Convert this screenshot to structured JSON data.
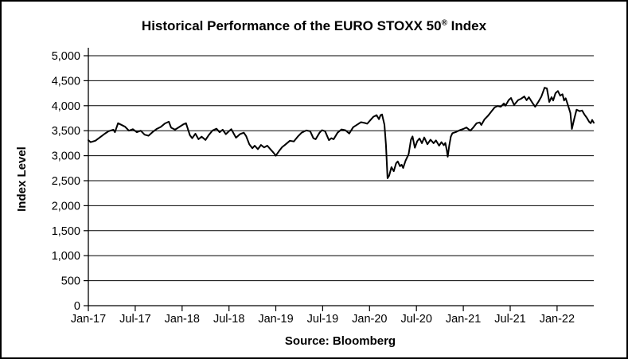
{
  "page": {
    "title_prefix": "Historical Performance of the EURO STOXX 50",
    "title_reg": "®",
    "title_suffix": " Index"
  },
  "chart_data": {
    "type": "line",
    "title": "Historical Performance of the EURO STOXX 50® Index",
    "ylabel": "Index Level",
    "xlabel": "",
    "source_label": "Source: Bloomberg",
    "legend": "none",
    "grid": "horizontal",
    "line_color": "#000000",
    "ylim": [
      0,
      5000
    ],
    "y_ticks": [
      {
        "value": 0,
        "label": "0"
      },
      {
        "value": 500,
        "label": "500"
      },
      {
        "value": 1000,
        "label": "1,000"
      },
      {
        "value": 1500,
        "label": "1,500"
      },
      {
        "value": 2000,
        "label": "2,000"
      },
      {
        "value": 2500,
        "label": "2,500"
      },
      {
        "value": 3000,
        "label": "3,000"
      },
      {
        "value": 3500,
        "label": "3,500"
      },
      {
        "value": 4000,
        "label": "4,000"
      },
      {
        "value": 4500,
        "label": "4,500"
      },
      {
        "value": 5000,
        "label": "5,000"
      }
    ],
    "x_ticks": [
      {
        "m": 0,
        "label": "Jan-17"
      },
      {
        "m": 6,
        "label": "Jul-17"
      },
      {
        "m": 12,
        "label": "Jan-18"
      },
      {
        "m": 18,
        "label": "Jul-18"
      },
      {
        "m": 24,
        "label": "Jan-19"
      },
      {
        "m": 30,
        "label": "Jul-19"
      },
      {
        "m": 36,
        "label": "Jan-20"
      },
      {
        "m": 42,
        "label": "Jul-20"
      },
      {
        "m": 48,
        "label": "Jan-21"
      },
      {
        "m": 54,
        "label": "Jul-21"
      },
      {
        "m": 60,
        "label": "Jan-22"
      }
    ],
    "x_domain_months": [
      0,
      64.7
    ],
    "x_unit": "months since Jan-2017",
    "series": [
      {
        "name": "EURO STOXX 50 Index level",
        "points": [
          [
            0,
            3310
          ],
          [
            0.3,
            3270
          ],
          [
            0.9,
            3300
          ],
          [
            1.6,
            3380
          ],
          [
            2.1,
            3440
          ],
          [
            2.6,
            3490
          ],
          [
            3.2,
            3520
          ],
          [
            3.4,
            3470
          ],
          [
            3.8,
            3650
          ],
          [
            4.2,
            3620
          ],
          [
            4.7,
            3580
          ],
          [
            5.2,
            3500
          ],
          [
            5.7,
            3530
          ],
          [
            6.2,
            3470
          ],
          [
            6.7,
            3500
          ],
          [
            7.2,
            3420
          ],
          [
            7.7,
            3400
          ],
          [
            8.2,
            3470
          ],
          [
            8.7,
            3530
          ],
          [
            9.3,
            3580
          ],
          [
            9.8,
            3645
          ],
          [
            10.3,
            3680
          ],
          [
            10.6,
            3560
          ],
          [
            11.1,
            3520
          ],
          [
            11.5,
            3560
          ],
          [
            11.9,
            3600
          ],
          [
            12.2,
            3630
          ],
          [
            12.5,
            3650
          ],
          [
            13.0,
            3410
          ],
          [
            13.3,
            3350
          ],
          [
            13.7,
            3440
          ],
          [
            14.1,
            3330
          ],
          [
            14.5,
            3380
          ],
          [
            15.0,
            3315
          ],
          [
            15.4,
            3410
          ],
          [
            15.9,
            3505
          ],
          [
            16.4,
            3540
          ],
          [
            16.8,
            3470
          ],
          [
            17.2,
            3520
          ],
          [
            17.6,
            3430
          ],
          [
            18.0,
            3490
          ],
          [
            18.3,
            3530
          ],
          [
            18.9,
            3360
          ],
          [
            19.4,
            3430
          ],
          [
            19.9,
            3460
          ],
          [
            20.2,
            3390
          ],
          [
            20.6,
            3230
          ],
          [
            21.0,
            3150
          ],
          [
            21.3,
            3200
          ],
          [
            21.7,
            3130
          ],
          [
            22.1,
            3215
          ],
          [
            22.5,
            3165
          ],
          [
            22.9,
            3200
          ],
          [
            23.3,
            3130
          ],
          [
            23.7,
            3060
          ],
          [
            24.0,
            3000
          ],
          [
            24.4,
            3090
          ],
          [
            24.8,
            3170
          ],
          [
            25.2,
            3220
          ],
          [
            25.8,
            3300
          ],
          [
            26.3,
            3285
          ],
          [
            26.8,
            3380
          ],
          [
            27.3,
            3460
          ],
          [
            27.9,
            3505
          ],
          [
            28.4,
            3490
          ],
          [
            28.8,
            3350
          ],
          [
            29.1,
            3330
          ],
          [
            29.6,
            3460
          ],
          [
            29.9,
            3510
          ],
          [
            30.3,
            3490
          ],
          [
            30.8,
            3310
          ],
          [
            31.1,
            3350
          ],
          [
            31.4,
            3330
          ],
          [
            31.9,
            3460
          ],
          [
            32.4,
            3525
          ],
          [
            32.9,
            3510
          ],
          [
            33.4,
            3445
          ],
          [
            33.9,
            3570
          ],
          [
            34.4,
            3620
          ],
          [
            34.9,
            3670
          ],
          [
            35.4,
            3655
          ],
          [
            35.7,
            3640
          ],
          [
            36.2,
            3730
          ],
          [
            36.5,
            3780
          ],
          [
            36.9,
            3810
          ],
          [
            37.2,
            3730
          ],
          [
            37.4,
            3810
          ],
          [
            37.6,
            3825
          ],
          [
            37.9,
            3620
          ],
          [
            38.1,
            3220
          ],
          [
            38.3,
            2550
          ],
          [
            38.5,
            2600
          ],
          [
            38.8,
            2770
          ],
          [
            39.1,
            2690
          ],
          [
            39.4,
            2850
          ],
          [
            39.6,
            2885
          ],
          [
            39.9,
            2790
          ],
          [
            40.1,
            2820
          ],
          [
            40.3,
            2755
          ],
          [
            40.6,
            2900
          ],
          [
            41.0,
            3030
          ],
          [
            41.3,
            3320
          ],
          [
            41.5,
            3385
          ],
          [
            41.8,
            3160
          ],
          [
            42.1,
            3290
          ],
          [
            42.4,
            3345
          ],
          [
            42.7,
            3250
          ],
          [
            43.0,
            3365
          ],
          [
            43.4,
            3230
          ],
          [
            43.8,
            3320
          ],
          [
            44.2,
            3250
          ],
          [
            44.5,
            3305
          ],
          [
            44.9,
            3200
          ],
          [
            45.2,
            3270
          ],
          [
            45.5,
            3210
          ],
          [
            45.7,
            3255
          ],
          [
            45.9,
            3095
          ],
          [
            46.0,
            2980
          ],
          [
            46.2,
            3200
          ],
          [
            46.4,
            3380
          ],
          [
            46.6,
            3450
          ],
          [
            47.0,
            3470
          ],
          [
            47.4,
            3500
          ],
          [
            47.7,
            3520
          ],
          [
            48.0,
            3535
          ],
          [
            48.4,
            3565
          ],
          [
            48.9,
            3500
          ],
          [
            49.3,
            3570
          ],
          [
            49.7,
            3650
          ],
          [
            50.1,
            3665
          ],
          [
            50.3,
            3615
          ],
          [
            50.7,
            3725
          ],
          [
            51.2,
            3805
          ],
          [
            51.6,
            3885
          ],
          [
            52.0,
            3965
          ],
          [
            52.4,
            3995
          ],
          [
            52.8,
            3980
          ],
          [
            53.2,
            4045
          ],
          [
            53.4,
            4000
          ],
          [
            53.8,
            4110
          ],
          [
            54.1,
            4155
          ],
          [
            54.5,
            4015
          ],
          [
            55.0,
            4110
          ],
          [
            55.4,
            4140
          ],
          [
            55.8,
            4185
          ],
          [
            56.1,
            4110
          ],
          [
            56.4,
            4170
          ],
          [
            56.9,
            4045
          ],
          [
            57.2,
            3980
          ],
          [
            57.6,
            4075
          ],
          [
            58.0,
            4185
          ],
          [
            58.4,
            4360
          ],
          [
            58.7,
            4345
          ],
          [
            59.0,
            4075
          ],
          [
            59.3,
            4170
          ],
          [
            59.5,
            4105
          ],
          [
            59.8,
            4250
          ],
          [
            60.1,
            4295
          ],
          [
            60.4,
            4200
          ],
          [
            60.7,
            4230
          ],
          [
            60.9,
            4105
          ],
          [
            61.1,
            4150
          ],
          [
            61.4,
            4010
          ],
          [
            61.7,
            3855
          ],
          [
            61.9,
            3535
          ],
          [
            62.2,
            3740
          ],
          [
            62.5,
            3920
          ],
          [
            62.9,
            3890
          ],
          [
            63.2,
            3905
          ],
          [
            63.5,
            3825
          ],
          [
            63.8,
            3760
          ],
          [
            64.1,
            3680
          ],
          [
            64.3,
            3650
          ],
          [
            64.5,
            3715
          ],
          [
            64.7,
            3660
          ]
        ]
      }
    ]
  }
}
